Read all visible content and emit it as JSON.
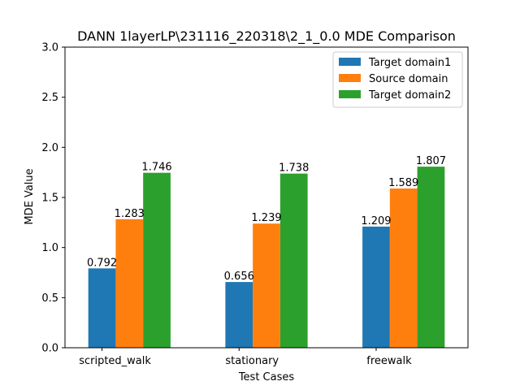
{
  "chart_data": {
    "type": "bar",
    "title": "DANN 1layerLP\\231116_220318\\2_1_0.0 MDE Comparison",
    "xlabel": "Test Cases",
    "ylabel": "MDE Value",
    "categories": [
      "scripted_walk",
      "stationary",
      "freewalk"
    ],
    "series": [
      {
        "name": "Target domain1",
        "color": "#1f77b4",
        "values": [
          0.792,
          0.656,
          1.209
        ],
        "labels": [
          "0.792",
          "0.656",
          "1.209"
        ]
      },
      {
        "name": "Source domain",
        "color": "#ff7f0e",
        "values": [
          1.283,
          1.239,
          1.589
        ],
        "labels": [
          "1.283",
          "1.239",
          "1.589"
        ]
      },
      {
        "name": "Target domain2",
        "color": "#2ca02c",
        "values": [
          1.746,
          1.738,
          1.807
        ],
        "labels": [
          "1.746",
          "1.738",
          "1.807"
        ]
      }
    ],
    "ylim": [
      0,
      3.0
    ],
    "yticks": [
      "0.0",
      "0.5",
      "1.0",
      "1.5",
      "2.0",
      "2.5",
      "3.0"
    ],
    "grid": false,
    "legend_position": "top-right"
  }
}
